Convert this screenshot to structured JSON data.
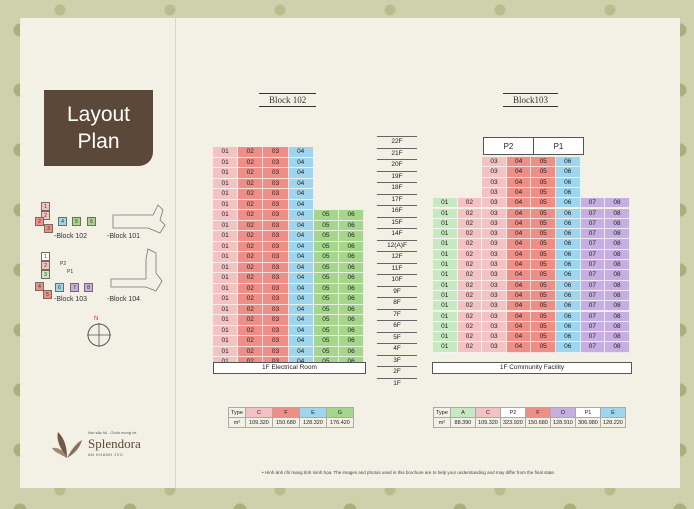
{
  "title": "Layout\nPlan",
  "minimap": {
    "block102_label": "-Block 102",
    "block101_label": "-Block 101",
    "block103_label": "-Block 103",
    "block104_label": "-Block 104",
    "p2": "P2",
    "p1": "P1",
    "u1": "1",
    "u2": "2",
    "u3": "3",
    "u4": "4",
    "u5": "5",
    "u6": "6",
    "u7": "7",
    "u8": "8",
    "compass": "N"
  },
  "block102": {
    "title": "Block 102",
    "base": "1F Electrical Room",
    "units": [
      "01",
      "02",
      "03",
      "04",
      "05",
      "06"
    ],
    "floors_top": [
      "22F",
      "21F",
      "20F",
      "19F",
      "18F",
      "17F"
    ],
    "floors_full": [
      "16F",
      "15F",
      "14F",
      "12(A)F",
      "12F",
      "11F",
      "10F",
      "9F",
      "8F",
      "7F",
      "6F",
      "5F",
      "4F",
      "3F",
      "2F"
    ]
  },
  "floor_labels": [
    "22F",
    "21F",
    "20F",
    "19F",
    "18F",
    "17F",
    "16F",
    "15F",
    "14F",
    "12(A)F",
    "12F",
    "11F",
    "10F",
    "9F",
    "8F",
    "7F",
    "6F",
    "5F",
    "4F",
    "3F",
    "2F",
    "1F"
  ],
  "block103": {
    "title": "Block103",
    "base": "1F Community Facility",
    "units": [
      "01",
      "02",
      "03",
      "04",
      "05",
      "06",
      "07",
      "08"
    ],
    "penthouse": [
      "P2",
      "P1"
    ]
  },
  "legend_102": {
    "type_label": "Type",
    "area_label": "m²",
    "types": [
      "C",
      "F",
      "E",
      "G"
    ],
    "areas": [
      "109.320",
      "150.680",
      "128.320",
      "176.420"
    ]
  },
  "legend_103": {
    "type_label": "Type",
    "area_label": "m²",
    "types": [
      "A",
      "C",
      "P2",
      "F",
      "D",
      "P1",
      "E"
    ],
    "areas": [
      "88.390",
      "109.320",
      "323.920",
      "150.680",
      "128.910",
      "306.980",
      "128.220"
    ]
  },
  "note": "• Hình ảnh chỉ mang tính minh họa. The images and photos used in this brochure are to help your understanding and may differ from the final state.",
  "logo": {
    "tagline": "Nơi sắc lối - Chốn mong về",
    "brand": "Splendora",
    "sub": "AN KHANH JVC"
  },
  "colors": {
    "red": "#ee8f87",
    "pink": "#f3c3c3",
    "blue": "#9fd6ee",
    "green": "#a6d68c",
    "purple": "#c6aee0",
    "lightgreen": "#c7e8c0",
    "white": "#ffffff"
  }
}
